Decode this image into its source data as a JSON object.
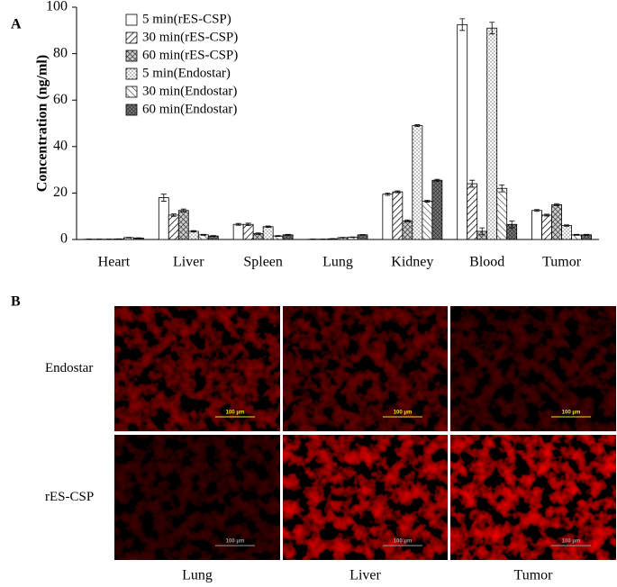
{
  "chart_data": {
    "type": "bar",
    "panel_label": "A",
    "y_label": "Concentration (ng/ml)",
    "categories": [
      "Heart",
      "Liver",
      "Spleen",
      "Lung",
      "Kidney",
      "Blood",
      "Tumor"
    ],
    "series": [
      {
        "name": "5 min(rES-CSP)",
        "color": "#ffffff",
        "hatch": "none",
        "values": [
          0.1,
          18,
          6.5,
          0.1,
          19.5,
          92.5,
          12.5
        ],
        "errors": [
          0.1,
          1.5,
          0.4,
          0.1,
          0.5,
          2.5,
          0.4
        ]
      },
      {
        "name": "30 min(rES-CSP)",
        "color": "#ffffff",
        "hatch": "diag",
        "values": [
          0.1,
          10.5,
          6.5,
          0.1,
          20.5,
          24,
          10.5
        ],
        "errors": [
          0.1,
          0.5,
          0.5,
          0.1,
          0.4,
          1.5,
          0.4
        ]
      },
      {
        "name": "60 min(rES-CSP)",
        "color": "#8a8a8a",
        "hatch": "cross",
        "values": [
          0.1,
          12.5,
          2.5,
          0.3,
          8,
          3.5,
          15
        ],
        "errors": [
          0.1,
          0.6,
          0.3,
          0.1,
          0.4,
          1.5,
          0.4
        ]
      },
      {
        "name": "5 min(Endostar)",
        "color": "#ffffff",
        "hatch": "dots",
        "values": [
          0.2,
          3.5,
          5.5,
          0.8,
          49,
          91,
          6
        ],
        "errors": [
          0.1,
          0.3,
          0.3,
          0.1,
          0.4,
          2.5,
          0.3
        ]
      },
      {
        "name": "30 min(Endostar)",
        "color": "#ffffff",
        "hatch": "antidiag",
        "values": [
          0.8,
          2,
          1.5,
          1,
          16.5,
          22,
          2
        ],
        "errors": [
          0.1,
          0.2,
          0.2,
          0.1,
          0.4,
          1.5,
          0.2
        ]
      },
      {
        "name": "60 min(Endostar)",
        "color": "#555555",
        "hatch": "dense",
        "values": [
          0.6,
          1.5,
          2,
          2,
          25.5,
          6.5,
          2
        ],
        "errors": [
          0.1,
          0.2,
          0.2,
          0.1,
          0.4,
          1.5,
          0.2
        ]
      }
    ],
    "ylim": [
      0,
      100
    ],
    "yticks": [
      0,
      20,
      40,
      60,
      80,
      100
    ],
    "grid": false
  },
  "panel_b": {
    "label": "B",
    "rows": [
      "Endostar",
      "rES-CSP"
    ],
    "columns": [
      "Lung",
      "Liver",
      "Tumor"
    ],
    "scale_bar": "100 μm"
  }
}
